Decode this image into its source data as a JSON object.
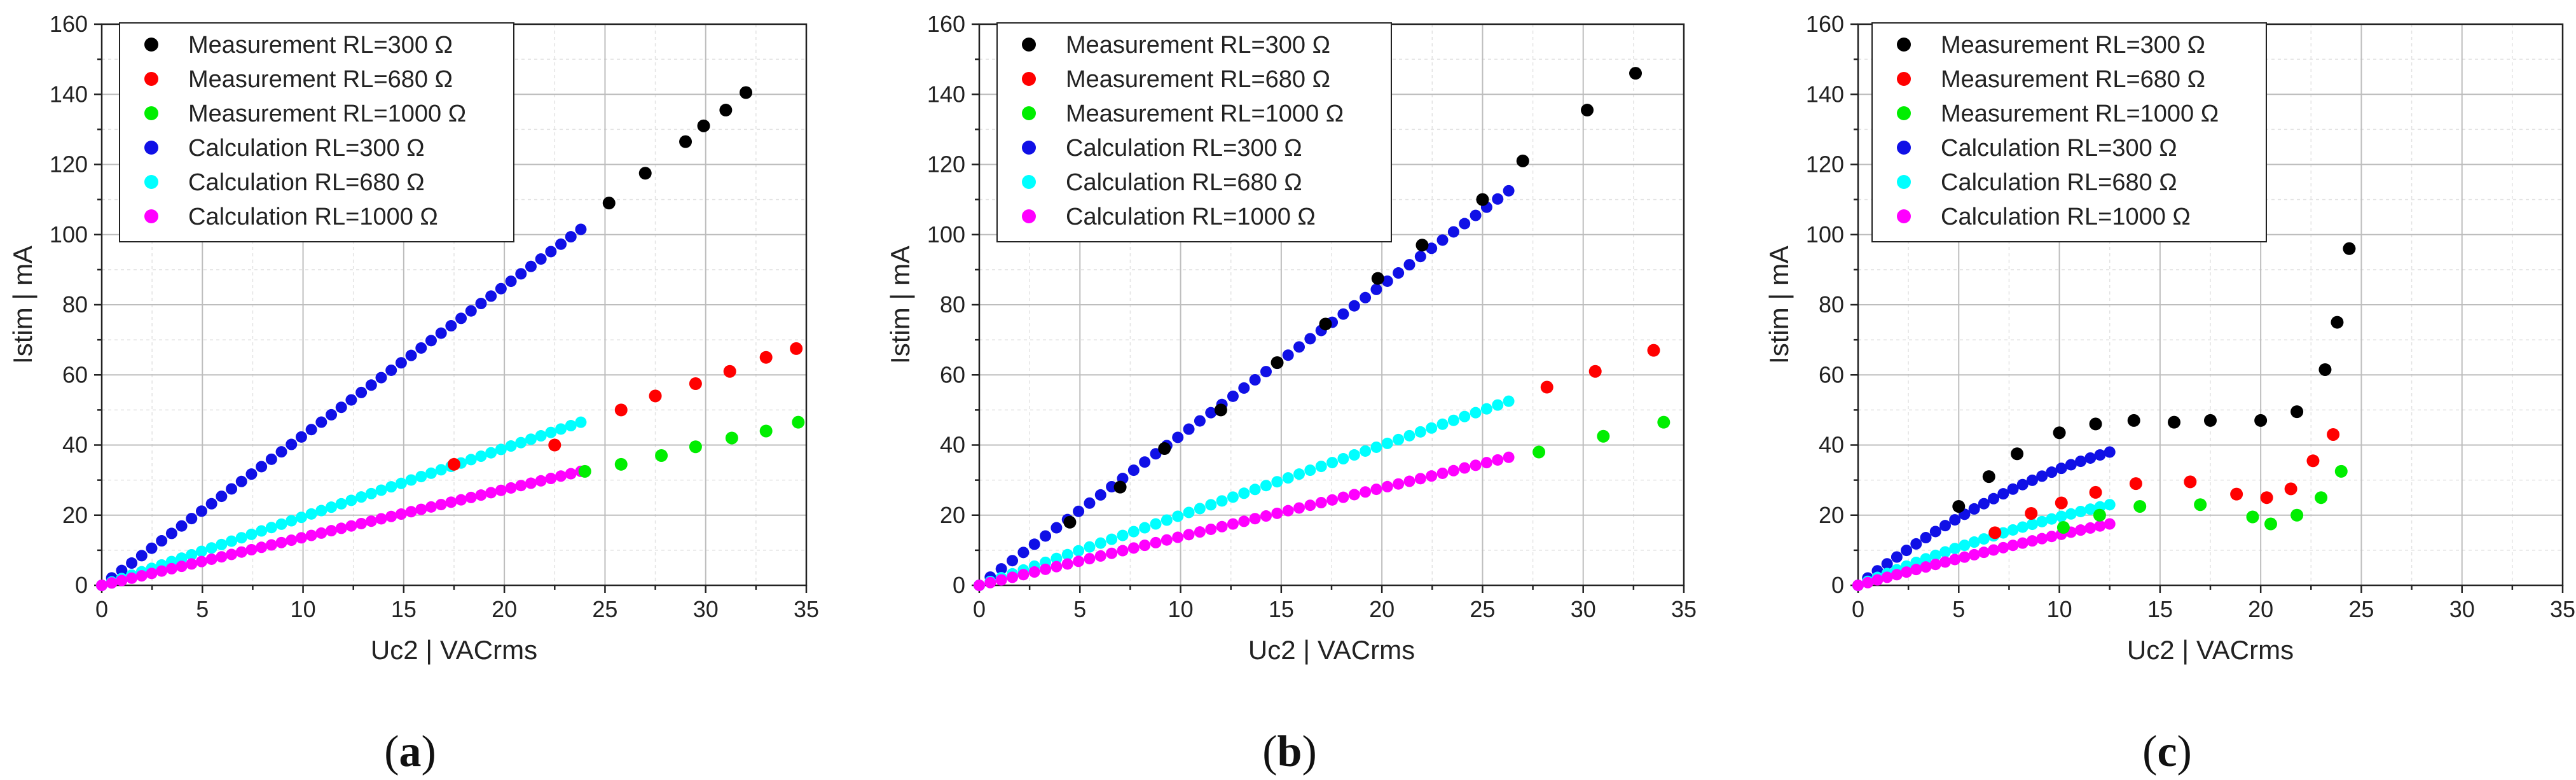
{
  "figure": {
    "panel_labels": [
      "(a)",
      "(b)",
      "(c)"
    ]
  },
  "chart_data": [
    {
      "type": "scatter",
      "panel": "(a)",
      "xlabel": "Uc2 | VACrms",
      "ylabel": "Istim | mA",
      "xlim": [
        0,
        35
      ],
      "ylim": [
        0,
        160
      ],
      "xticks": [
        0,
        5,
        10,
        15,
        20,
        25,
        30,
        35
      ],
      "yticks": [
        0,
        20,
        40,
        60,
        80,
        100,
        120,
        140,
        160
      ],
      "legend_position": "top-left",
      "series": [
        {
          "name": "Measurement RL=300 Ω",
          "color": "#000000",
          "kind": "measurement",
          "x": [
            25.2,
            27.0,
            29.0,
            29.9,
            31.0,
            32.0
          ],
          "y": [
            109,
            117.5,
            126.5,
            131,
            135.5,
            140.5
          ]
        },
        {
          "name": "Measurement RL=680 Ω",
          "color": "#ff0000",
          "kind": "measurement",
          "x": [
            17.5,
            22.5,
            25.8,
            27.5,
            29.5,
            31.2,
            33.0,
            34.5
          ],
          "y": [
            34.5,
            40,
            50,
            54,
            57.5,
            61,
            65,
            67.5
          ]
        },
        {
          "name": "Measurement RL=1000 Ω",
          "color": "#00ee00",
          "kind": "measurement",
          "x": [
            24.0,
            25.8,
            27.8,
            29.5,
            31.3,
            33.0,
            34.6
          ],
          "y": [
            32.5,
            34.5,
            37,
            39.5,
            42,
            44,
            46.5
          ]
        },
        {
          "name": "Calculation RL=300 Ω",
          "color": "#1010e6",
          "kind": "calculation",
          "x_end": 23.8,
          "y_end": 101.5,
          "n": 48
        },
        {
          "name": "Calculation RL=680 Ω",
          "color": "#00ffff",
          "kind": "calculation",
          "x_end": 23.8,
          "y_end": 46.5,
          "n": 48
        },
        {
          "name": "Calculation RL=1000 Ω",
          "color": "#ff00ff",
          "kind": "calculation",
          "x_end": 23.8,
          "y_end": 32.5,
          "n": 48
        }
      ]
    },
    {
      "type": "scatter",
      "panel": "(b)",
      "xlabel": "Uc2 | VACrms",
      "ylabel": "Istim | mA",
      "xlim": [
        0,
        35
      ],
      "ylim": [
        0,
        160
      ],
      "xticks": [
        0,
        5,
        10,
        15,
        20,
        25,
        30,
        35
      ],
      "yticks": [
        0,
        20,
        40,
        60,
        80,
        100,
        120,
        140,
        160
      ],
      "legend_position": "top-left",
      "series": [
        {
          "name": "Measurement RL=300 Ω",
          "color": "#000000",
          "kind": "measurement",
          "x": [
            4.5,
            7.0,
            9.2,
            12.0,
            14.8,
            17.2,
            19.8,
            22.0,
            25.0,
            27.0,
            30.2,
            32.6
          ],
          "y": [
            18,
            28,
            39,
            50,
            63.5,
            74.5,
            87.5,
            97,
            110,
            121,
            135.5,
            146
          ]
        },
        {
          "name": "Measurement RL=680 Ω",
          "color": "#ff0000",
          "kind": "measurement",
          "x": [
            28.2,
            30.6,
            33.5
          ],
          "y": [
            56.5,
            61,
            67
          ]
        },
        {
          "name": "Measurement RL=1000 Ω",
          "color": "#00ee00",
          "kind": "measurement",
          "x": [
            27.8,
            31.0,
            34.0
          ],
          "y": [
            38,
            42.5,
            46.5
          ]
        },
        {
          "name": "Calculation RL=300 Ω",
          "color": "#1010e6",
          "kind": "calculation",
          "x_end": 26.3,
          "y_end": 112.5,
          "n": 48
        },
        {
          "name": "Calculation RL=680 Ω",
          "color": "#00ffff",
          "kind": "calculation",
          "x_end": 26.3,
          "y_end": 52.5,
          "n": 48
        },
        {
          "name": "Calculation RL=1000 Ω",
          "color": "#ff00ff",
          "kind": "calculation",
          "x_end": 26.3,
          "y_end": 36.5,
          "n": 48
        }
      ]
    },
    {
      "type": "scatter",
      "panel": "(c)",
      "xlabel": "Uc2 | VACrms",
      "ylabel": "Istim | mA",
      "xlim": [
        0,
        35
      ],
      "ylim": [
        0,
        160
      ],
      "xticks": [
        0,
        5,
        10,
        15,
        20,
        25,
        30,
        35
      ],
      "yticks": [
        0,
        20,
        40,
        60,
        80,
        100,
        120,
        140,
        160
      ],
      "legend_position": "top-left",
      "series": [
        {
          "name": "Measurement RL=300 Ω",
          "color": "#000000",
          "kind": "measurement",
          "x": [
            5.0,
            6.5,
            7.9,
            10.0,
            11.8,
            13.7,
            15.7,
            17.5,
            20.0,
            21.8,
            23.2,
            23.8,
            24.4
          ],
          "y": [
            22.5,
            31,
            37.5,
            43.5,
            46,
            47,
            46.5,
            47,
            47,
            49.5,
            61.5,
            75,
            96
          ]
        },
        {
          "name": "Measurement RL=680 Ω",
          "color": "#ff0000",
          "kind": "measurement",
          "x": [
            6.8,
            8.6,
            10.1,
            11.8,
            13.8,
            16.5,
            18.8,
            20.3,
            21.5,
            22.6,
            23.6
          ],
          "y": [
            15,
            20.5,
            23.5,
            26.5,
            29,
            29.5,
            26,
            25,
            27.5,
            35.5,
            43
          ]
        },
        {
          "name": "Measurement RL=1000 Ω",
          "color": "#00ee00",
          "kind": "measurement",
          "x": [
            10.2,
            12.0,
            14.0,
            17.0,
            19.6,
            20.5,
            21.8,
            23.0,
            24.0
          ],
          "y": [
            16.5,
            20,
            22.5,
            23,
            19.5,
            17.5,
            20,
            25,
            32.5
          ]
        },
        {
          "name": "Calculation RL=300 Ω",
          "color": "#1010e6",
          "kind": "calculation",
          "x_end": 12.5,
          "y_end": 38,
          "n": 26,
          "curve": 0.45
        },
        {
          "name": "Calculation RL=680 Ω",
          "color": "#00ffff",
          "kind": "calculation",
          "x_end": 12.5,
          "y_end": 23,
          "n": 26,
          "curve": 0.3
        },
        {
          "name": "Calculation RL=1000 Ω",
          "color": "#ff00ff",
          "kind": "calculation",
          "x_end": 12.5,
          "y_end": 17.5,
          "n": 26,
          "curve": 0.15
        }
      ]
    }
  ]
}
